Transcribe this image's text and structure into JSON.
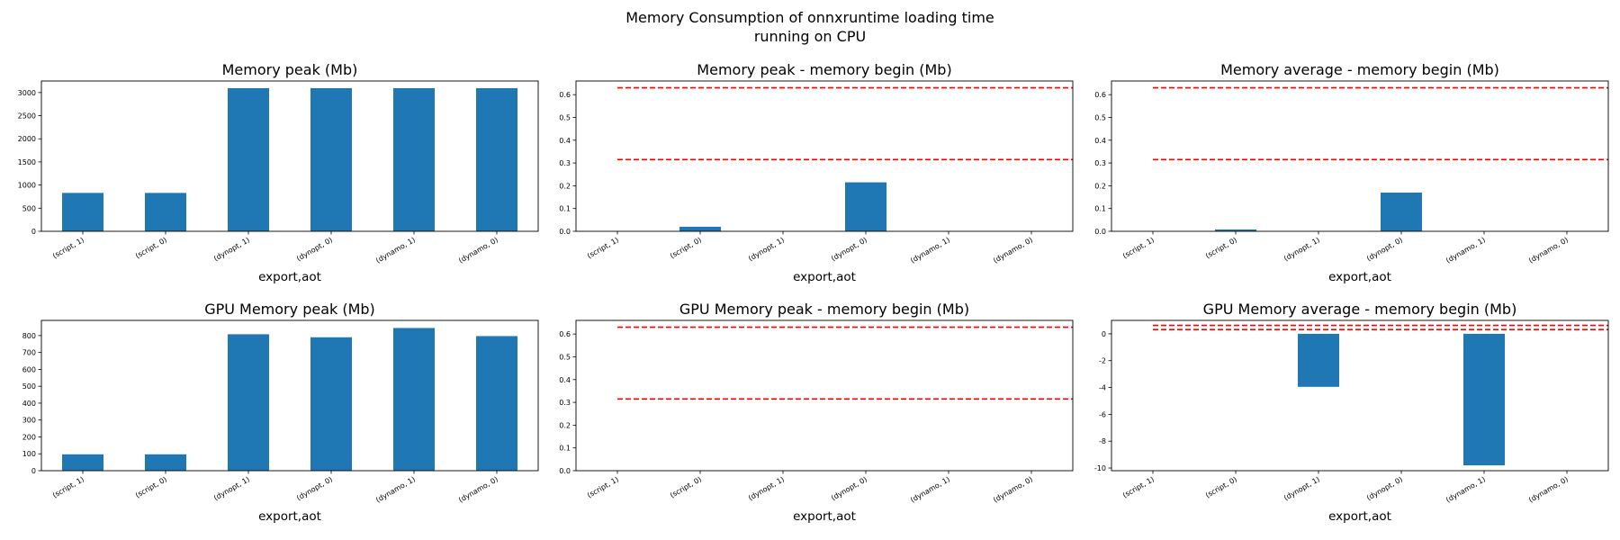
{
  "figure": {
    "title_line1": "Memory Consumption of onnxruntime loading time",
    "title_line2": "running on CPU",
    "colors": {
      "bar": "#1f77b4",
      "ref_line": "#ff0000"
    }
  },
  "chart_data": [
    {
      "type": "bar",
      "title": "Memory peak (Mb)",
      "xlabel": "export,aot",
      "categories": [
        "(script, 1)",
        "(script, 0)",
        "(dynopt, 1)",
        "(dynopt, 0)",
        "(dynamo, 1)",
        "(dynamo, 0)"
      ],
      "values": [
        830,
        830,
        3095,
        3095,
        3095,
        3095
      ],
      "ylim": [
        0,
        3250
      ],
      "yticks": [
        0,
        500,
        1000,
        1500,
        2000,
        2500,
        3000
      ],
      "ref_lines": []
    },
    {
      "type": "bar",
      "title": "Memory peak - memory begin (Mb)",
      "xlabel": "export,aot",
      "categories": [
        "(script, 1)",
        "(script, 0)",
        "(dynopt, 1)",
        "(dynopt, 0)",
        "(dynamo, 1)",
        "(dynamo, 0)"
      ],
      "values": [
        0,
        0.02,
        0,
        0.215,
        0,
        0
      ],
      "ylim": [
        0,
        0.66
      ],
      "yticks": [
        0.0,
        0.1,
        0.2,
        0.3,
        0.4,
        0.5,
        0.6
      ],
      "ref_lines": [
        0.63,
        0.315
      ]
    },
    {
      "type": "bar",
      "title": "Memory average - memory begin (Mb)",
      "xlabel": "export,aot",
      "categories": [
        "(script, 1)",
        "(script, 0)",
        "(dynopt, 1)",
        "(dynopt, 0)",
        "(dynamo, 1)",
        "(dynamo, 0)"
      ],
      "values": [
        0,
        0.008,
        0,
        0.17,
        0,
        0
      ],
      "ylim": [
        0,
        0.66
      ],
      "yticks": [
        0.0,
        0.1,
        0.2,
        0.3,
        0.4,
        0.5,
        0.6
      ],
      "ref_lines": [
        0.63,
        0.315
      ]
    },
    {
      "type": "bar",
      "title": "GPU Memory peak (Mb)",
      "xlabel": "export,aot",
      "categories": [
        "(script, 1)",
        "(script, 0)",
        "(dynopt, 1)",
        "(dynopt, 0)",
        "(dynamo, 1)",
        "(dynamo, 0)"
      ],
      "values": [
        97,
        97,
        808,
        790,
        845,
        797
      ],
      "ylim": [
        0,
        890
      ],
      "yticks": [
        0,
        100,
        200,
        300,
        400,
        500,
        600,
        700,
        800
      ],
      "ref_lines": []
    },
    {
      "type": "bar",
      "title": "GPU Memory peak - memory begin (Mb)",
      "xlabel": "export,aot",
      "categories": [
        "(script, 1)",
        "(script, 0)",
        "(dynopt, 1)",
        "(dynopt, 0)",
        "(dynamo, 1)",
        "(dynamo, 0)"
      ],
      "values": [
        0,
        0,
        0,
        0,
        0,
        0
      ],
      "ylim": [
        0,
        0.66
      ],
      "yticks": [
        0.0,
        0.1,
        0.2,
        0.3,
        0.4,
        0.5,
        0.6
      ],
      "ref_lines": [
        0.63,
        0.315
      ]
    },
    {
      "type": "bar",
      "title": "GPU Memory average - memory begin (Mb)",
      "xlabel": "export,aot",
      "categories": [
        "(script, 1)",
        "(script, 0)",
        "(dynopt, 1)",
        "(dynopt, 0)",
        "(dynamo, 1)",
        "(dynamo, 0)"
      ],
      "values": [
        0,
        0,
        -3.95,
        0,
        -9.8,
        0
      ],
      "ylim": [
        -10.2,
        1.0
      ],
      "yticks": [
        -10,
        -8,
        -6,
        -4,
        -2,
        0
      ],
      "ref_lines": [
        0.63,
        0.315
      ]
    }
  ]
}
